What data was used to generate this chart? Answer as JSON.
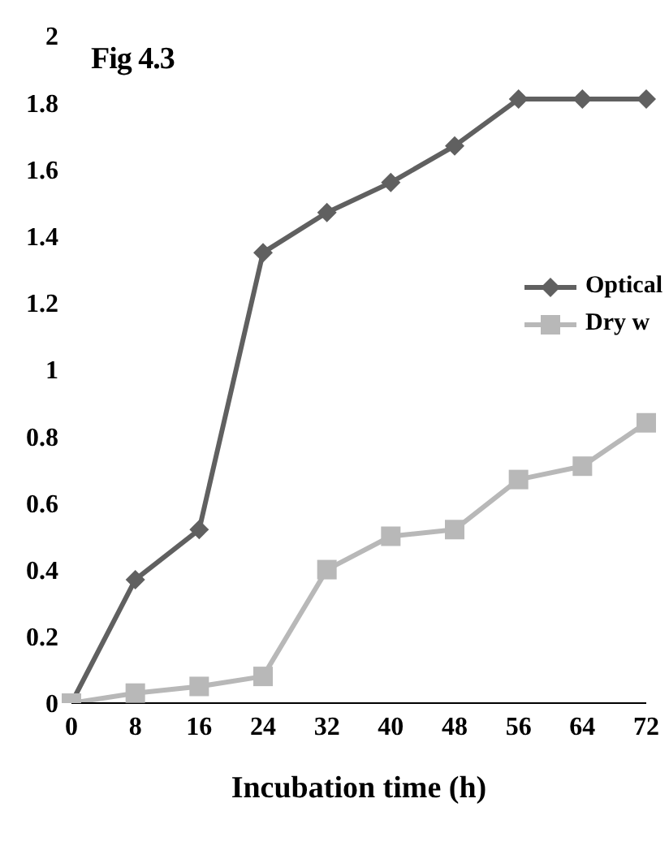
{
  "chart_data": {
    "type": "line",
    "annotations": [
      "Fig 4.3"
    ],
    "xlabel": "Incubation time (h)",
    "categories": [
      "0",
      "8",
      "16",
      "24",
      "32",
      "40",
      "48",
      "56",
      "64",
      "72"
    ],
    "series": [
      {
        "name": "Optical",
        "color": "#606060",
        "marker": "diamond",
        "values": [
          0,
          0.37,
          0.52,
          1.35,
          1.47,
          1.56,
          1.67,
          1.81,
          1.81,
          1.81
        ]
      },
      {
        "name": "Dry w",
        "color": "#b8b8b8",
        "marker": "square",
        "values": [
          0,
          0.03,
          0.05,
          0.08,
          0.4,
          0.5,
          0.52,
          0.67,
          0.71,
          0.84
        ]
      }
    ],
    "ylim": [
      0,
      2
    ],
    "yticks": [
      0,
      0.2,
      0.4,
      0.6,
      0.8,
      1,
      1.2,
      1.4,
      1.6,
      1.8,
      2
    ],
    "grid": false,
    "legend": "right"
  }
}
